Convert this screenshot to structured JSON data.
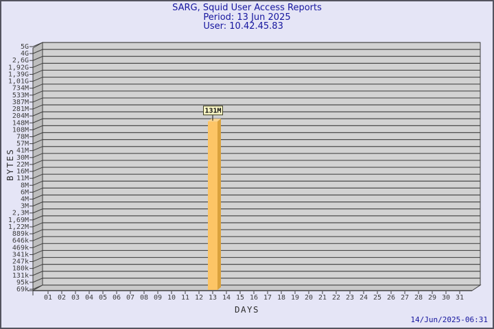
{
  "header": {
    "title": "SARG, Squid User Access Reports",
    "period": "Period: 13 Jun 2025",
    "user": "User: 10.42.45.83"
  },
  "footer": {
    "generated": "14/Jun/2025-06:31"
  },
  "chart_data": {
    "type": "bar",
    "title": "SARG, Squid User Access Reports",
    "subtitle": [
      "Period: 13 Jun 2025",
      "User: 10.42.45.83"
    ],
    "xlabel": "DAYS",
    "ylabel": "BYTES",
    "x_categories": [
      "01",
      "02",
      "03",
      "04",
      "05",
      "06",
      "07",
      "08",
      "09",
      "10",
      "11",
      "12",
      "13",
      "14",
      "15",
      "16",
      "17",
      "18",
      "19",
      "20",
      "21",
      "22",
      "23",
      "24",
      "25",
      "26",
      "27",
      "28",
      "29",
      "30",
      "31"
    ],
    "y_ticks": [
      "5G",
      "4G",
      "2,6G",
      "1,92G",
      "1,39G",
      "1,01G",
      "734M",
      "533M",
      "387M",
      "281M",
      "204M",
      "148M",
      "108M",
      "78M",
      "57M",
      "41M",
      "30M",
      "22M",
      "16M",
      "11M",
      "8M",
      "6M",
      "4M",
      "3M",
      "2,3M",
      "1,69M",
      "1,22M",
      "889k",
      "646k",
      "469k",
      "341k",
      "247k",
      "180k",
      "131k",
      "95k",
      "69k"
    ],
    "y_scale": "log-like, ticks evenly spaced",
    "grid": "horizontal only",
    "style": "3d-bar",
    "bars": [
      {
        "day": "13",
        "value_label": "131M"
      }
    ],
    "colors": {
      "bar_front": "#fdc566",
      "bar_side": "#dba23d",
      "bar_top": "#fbd690",
      "value_label_bg": "#f8f5c4",
      "value_label_border": "#3d3d22",
      "plot_bg": "#d2d2d2",
      "wall": "#bdbdbd",
      "floor": "#c9c9c9",
      "grid_line": "#4a4a4a",
      "edge": "#3f3f3f",
      "tick_text": "#3c3c3c",
      "axis_title_text": "#2e2e2e",
      "title_text": "#15159e",
      "page_bg": "#e5e5f6"
    }
  }
}
